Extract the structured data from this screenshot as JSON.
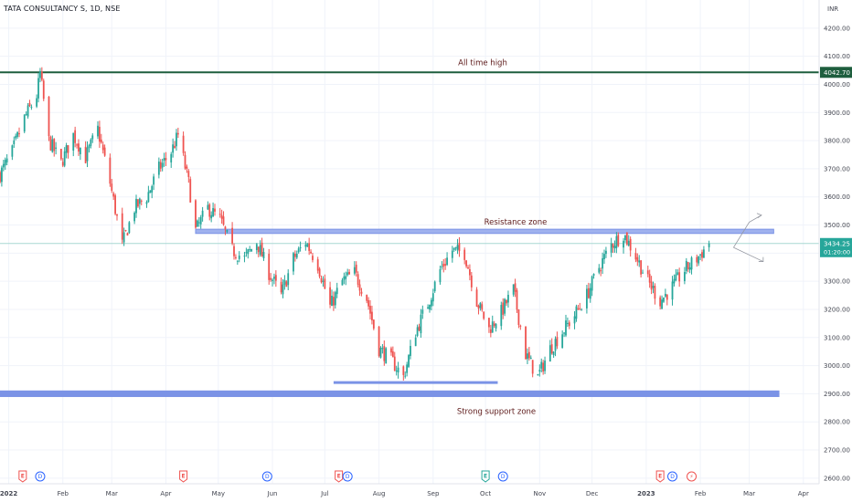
{
  "header": {
    "symbol_title": "TATA CONSULTANCY S, 1D, NSE",
    "currency": "INR"
  },
  "colors": {
    "up": "#26a69a",
    "down": "#ef5350",
    "ath_line": "#1e5e3e",
    "zone": "#7b93e6",
    "zone_fill": "#9fb1ee",
    "text_dark": "#5d1a1a",
    "axis_text": "#434651",
    "last_price_bg": "#26a69a",
    "price_line": "#a8d8d2"
  },
  "chart_data": {
    "type": "candlestick",
    "y_axis": {
      "min": 2580,
      "max": 4300,
      "ticks": [
        2600,
        2700,
        2800,
        2900,
        3000,
        3100,
        3200,
        3300,
        3400,
        3500,
        3600,
        3700,
        3800,
        3900,
        4000,
        4100,
        4200
      ],
      "tick_labels": [
        "2600.00",
        "2700.00",
        "2800.00",
        "2900.00",
        "3000.00",
        "3100.00",
        "3200.00",
        "3300.00",
        "3400.00",
        "3500.00",
        "3600.00",
        "3700.00",
        "3800.00",
        "3900.00",
        "4000.00",
        "4100.00",
        "4200.00"
      ]
    },
    "x_axis": {
      "range": [
        "2021-12-27",
        "2023-04-10"
      ],
      "tick_dates": [
        "2022-01-01",
        "2022-02-01",
        "2022-03-01",
        "2022-04-01",
        "2022-05-01",
        "2022-06-01",
        "2022-07-01",
        "2022-08-01",
        "2022-09-01",
        "2022-10-01",
        "2022-11-01",
        "2022-12-01",
        "2023-01-01",
        "2023-02-01",
        "2023-03-01",
        "2023-04-01"
      ],
      "tick_labels": [
        "2022",
        "Feb",
        "Mar",
        "Apr",
        "May",
        "Jun",
        "Jul",
        "Aug",
        "Sep",
        "Oct",
        "Nov",
        "Dec",
        "2023",
        "Feb",
        "Mar",
        "Apr"
      ]
    },
    "price_anchors": [
      [
        "2021-12-27",
        3680
      ],
      [
        "2022-01-03",
        3760
      ],
      [
        "2022-01-10",
        3880
      ],
      [
        "2022-01-17",
        3960
      ],
      [
        "2022-01-19",
        4040
      ],
      [
        "2022-01-24",
        3800
      ],
      [
        "2022-01-31",
        3720
      ],
      [
        "2022-02-07",
        3820
      ],
      [
        "2022-02-14",
        3740
      ],
      [
        "2022-02-21",
        3840
      ],
      [
        "2022-02-28",
        3650
      ],
      [
        "2022-03-07",
        3430
      ],
      [
        "2022-03-14",
        3560
      ],
      [
        "2022-03-21",
        3600
      ],
      [
        "2022-03-28",
        3700
      ],
      [
        "2022-04-04",
        3760
      ],
      [
        "2022-04-08",
        3820
      ],
      [
        "2022-04-14",
        3650
      ],
      [
        "2022-04-18",
        3480
      ],
      [
        "2022-04-25",
        3560
      ],
      [
        "2022-05-02",
        3520
      ],
      [
        "2022-05-09",
        3410
      ],
      [
        "2022-05-16",
        3380
      ],
      [
        "2022-05-23",
        3440
      ],
      [
        "2022-05-30",
        3330
      ],
      [
        "2022-06-06",
        3250
      ],
      [
        "2022-06-13",
        3380
      ],
      [
        "2022-06-20",
        3440
      ],
      [
        "2022-06-27",
        3360
      ],
      [
        "2022-07-04",
        3210
      ],
      [
        "2022-07-11",
        3300
      ],
      [
        "2022-07-18",
        3330
      ],
      [
        "2022-07-25",
        3240
      ],
      [
        "2022-08-01",
        3060
      ],
      [
        "2022-08-08",
        3020
      ],
      [
        "2022-08-15",
        2960
      ],
      [
        "2022-08-22",
        3120
      ],
      [
        "2022-08-29",
        3220
      ],
      [
        "2022-09-05",
        3340
      ],
      [
        "2022-09-12",
        3410
      ],
      [
        "2022-09-19",
        3400
      ],
      [
        "2022-09-26",
        3230
      ],
      [
        "2022-10-03",
        3130
      ],
      [
        "2022-10-10",
        3190
      ],
      [
        "2022-10-17",
        3270
      ],
      [
        "2022-10-24",
        3040
      ],
      [
        "2022-10-31",
        2960
      ],
      [
        "2022-11-07",
        3060
      ],
      [
        "2022-11-14",
        3120
      ],
      [
        "2022-11-21",
        3180
      ],
      [
        "2022-11-28",
        3250
      ],
      [
        "2022-12-05",
        3350
      ],
      [
        "2022-12-12",
        3430
      ],
      [
        "2022-12-19",
        3470
      ],
      [
        "2022-12-26",
        3390
      ],
      [
        "2023-01-02",
        3300
      ],
      [
        "2023-01-09",
        3230
      ],
      [
        "2023-01-16",
        3280
      ],
      [
        "2023-01-23",
        3340
      ],
      [
        "2023-01-30",
        3380
      ],
      [
        "2023-02-06",
        3434
      ]
    ],
    "last_price": {
      "value": 3434.25,
      "label": "3434.25",
      "countdown": "01:20:00"
    },
    "ath_level": {
      "value": 4042.7,
      "label": "4042.70",
      "text": "All time high"
    },
    "resistance_zone": {
      "low": 3470,
      "high": 3485,
      "start": "2022-04-18",
      "end": "2023-03-15",
      "text": "Resistance zone"
    },
    "support_short": {
      "value": 2940,
      "start": "2022-07-06",
      "end": "2022-10-08"
    },
    "support_zone": {
      "low": 2890,
      "high": 2910,
      "start": "2021-12-27",
      "end": "2023-03-18",
      "text": "Strong support zone"
    },
    "projection": {
      "start": [
        "2023-02-20",
        3420
      ],
      "up": [
        [
          "2023-03-01",
          3510
        ],
        [
          "2023-03-08",
          3535
        ]
      ],
      "down": [
        "2023-03-09",
        3370
      ]
    },
    "events": [
      {
        "date": "2022-01-09",
        "type": "E",
        "color": "#ef5350"
      },
      {
        "date": "2022-01-19",
        "type": "D",
        "color": "#2962ff"
      },
      {
        "date": "2022-04-11",
        "type": "E",
        "color": "#ef5350"
      },
      {
        "date": "2022-05-29",
        "type": "D",
        "color": "#2962ff"
      },
      {
        "date": "2022-07-09",
        "type": "E",
        "color": "#ef5350"
      },
      {
        "date": "2022-07-14",
        "type": "D",
        "color": "#2962ff"
      },
      {
        "date": "2022-10-01",
        "type": "E",
        "color": "#26a69a"
      },
      {
        "date": "2022-10-11",
        "type": "D",
        "color": "#2962ff"
      },
      {
        "date": "2023-01-09",
        "type": "E",
        "color": "#ef5350"
      },
      {
        "date": "2023-01-16",
        "type": "D",
        "color": "#2962ff"
      },
      {
        "date": "2023-01-27",
        "type": "⚡",
        "color": "#ef5350"
      }
    ]
  }
}
